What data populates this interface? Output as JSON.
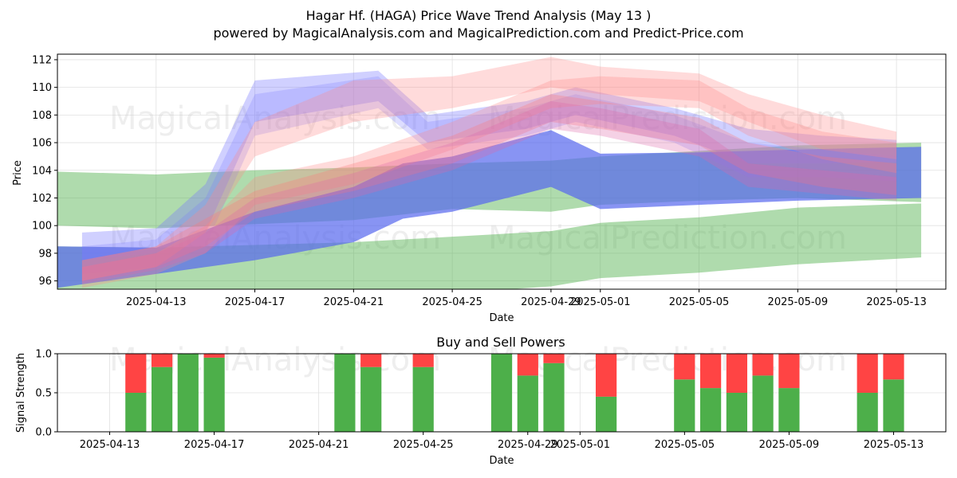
{
  "title_line1": "Hagar Hf. (HAGA) Price Wave Trend Analysis (May 13 )",
  "title_line2": "powered by MagicalAnalysis.com and MagicalPrediction.com and Predict-Price.com",
  "watermarks": [
    "MagicalAnalysis.com",
    "MagicalPrediction.com"
  ],
  "colors": {
    "green": "#4daf4a",
    "red": "#ff4444",
    "blue": "#5555ff",
    "pink": "#ff9999",
    "grid": "#e0e0e0"
  },
  "chart_data": [
    {
      "type": "area",
      "title": "",
      "xlabel": "Date",
      "ylabel": "Price",
      "ylim": [
        95.4,
        112.4
      ],
      "yticks": [
        96,
        98,
        100,
        102,
        104,
        106,
        108,
        110,
        112
      ],
      "xlim": [
        "2025-04-09",
        "2025-05-15"
      ],
      "xticks": [
        "2025-04-13",
        "2025-04-17",
        "2025-04-21",
        "2025-04-25",
        "2025-04-29",
        "2025-05-01",
        "2025-05-05",
        "2025-05-09",
        "2025-05-13"
      ],
      "grid": true,
      "bands": [
        {
          "name": "green-upper",
          "color": "#4daf4a",
          "opacity": 0.45,
          "x": [
            "2025-04-09",
            "2025-04-13",
            "2025-04-17",
            "2025-04-21",
            "2025-04-25",
            "2025-04-29",
            "2025-05-01",
            "2025-05-05",
            "2025-05-09",
            "2025-05-14"
          ],
          "upper": [
            103.9,
            103.7,
            104.0,
            104.2,
            104.5,
            104.7,
            105.0,
            105.4,
            105.8,
            106.0
          ],
          "lower": [
            100.0,
            99.8,
            100.1,
            100.4,
            101.2,
            101.0,
            101.5,
            101.8,
            102.0,
            101.7
          ]
        },
        {
          "name": "green-lower",
          "color": "#4daf4a",
          "opacity": 0.45,
          "x": [
            "2025-04-09",
            "2025-04-13",
            "2025-04-17",
            "2025-04-21",
            "2025-04-25",
            "2025-04-29",
            "2025-05-01",
            "2025-05-05",
            "2025-05-09",
            "2025-05-14"
          ],
          "upper": [
            98.5,
            98.4,
            98.6,
            98.8,
            99.2,
            99.6,
            100.2,
            100.6,
            101.3,
            101.6
          ],
          "lower": [
            95.0,
            94.0,
            94.5,
            94.8,
            95.1,
            95.6,
            96.2,
            96.6,
            97.2,
            97.7
          ]
        },
        {
          "name": "blue-main",
          "color": "#5566ee",
          "opacity": 0.7,
          "x": [
            "2025-04-09",
            "2025-04-13",
            "2025-04-17",
            "2025-04-21",
            "2025-04-23",
            "2025-04-25",
            "2025-04-29",
            "2025-05-01",
            "2025-05-05",
            "2025-05-09",
            "2025-05-14"
          ],
          "upper": [
            98.5,
            98.4,
            101.0,
            102.8,
            104.5,
            105.0,
            106.9,
            105.2,
            105.3,
            105.5,
            105.7
          ],
          "lower": [
            95.5,
            96.5,
            97.5,
            98.8,
            100.5,
            101.0,
            102.8,
            101.2,
            101.5,
            101.8,
            102.0
          ]
        },
        {
          "name": "blue-wave-1",
          "color": "#7777ff",
          "opacity": 0.35,
          "x": [
            "2025-04-10",
            "2025-04-13",
            "2025-04-15",
            "2025-04-17",
            "2025-04-22",
            "2025-04-24",
            "2025-04-28",
            "2025-04-30",
            "2025-05-04",
            "2025-05-07",
            "2025-05-10",
            "2025-05-13"
          ],
          "upper": [
            99.5,
            99.8,
            103.0,
            110.5,
            111.2,
            108.0,
            109.0,
            110.0,
            108.5,
            107.0,
            106.5,
            106.2
          ],
          "lower": [
            97.5,
            98.0,
            99.5,
            107.5,
            109.0,
            106.0,
            107.0,
            108.0,
            106.5,
            104.5,
            104.5,
            104.6
          ]
        },
        {
          "name": "blue-wave-2",
          "color": "#7777ff",
          "opacity": 0.25,
          "x": [
            "2025-04-10",
            "2025-04-13",
            "2025-04-15",
            "2025-04-17",
            "2025-04-22",
            "2025-04-24",
            "2025-04-28",
            "2025-04-30",
            "2025-05-04",
            "2025-05-07",
            "2025-05-10",
            "2025-05-13"
          ],
          "upper": [
            98.5,
            99.0,
            102.0,
            109.5,
            110.8,
            107.5,
            108.5,
            109.5,
            108.0,
            106.0,
            105.5,
            105.0
          ],
          "lower": [
            96.5,
            97.0,
            98.5,
            106.5,
            108.5,
            105.5,
            106.5,
            107.5,
            106.0,
            103.5,
            103.5,
            103.2
          ]
        },
        {
          "name": "pink-wave-1",
          "color": "#ff8888",
          "opacity": 0.3,
          "x": [
            "2025-04-10",
            "2025-04-13",
            "2025-04-15",
            "2025-04-17",
            "2025-04-21",
            "2025-04-25",
            "2025-04-29",
            "2025-05-01",
            "2025-05-05",
            "2025-05-07",
            "2025-05-10",
            "2025-05-13"
          ],
          "upper": [
            97.5,
            98.5,
            101.5,
            107.5,
            110.5,
            110.8,
            112.2,
            111.5,
            111.0,
            109.5,
            108.0,
            106.8
          ],
          "lower": [
            96.0,
            97.0,
            99.5,
            105.0,
            107.5,
            108.5,
            110.0,
            109.5,
            109.0,
            107.5,
            105.5,
            104.8
          ]
        },
        {
          "name": "pink-wave-2",
          "color": "#ff8888",
          "opacity": 0.3,
          "x": [
            "2025-04-10",
            "2025-04-13",
            "2025-04-15",
            "2025-04-17",
            "2025-04-21",
            "2025-04-25",
            "2025-04-29",
            "2025-05-01",
            "2025-05-05",
            "2025-05-07",
            "2025-05-10",
            "2025-05-13"
          ],
          "upper": [
            97.0,
            98.0,
            100.0,
            103.5,
            105.0,
            107.5,
            110.5,
            110.8,
            110.5,
            108.5,
            106.8,
            106.0
          ],
          "lower": [
            95.5,
            96.5,
            98.0,
            101.5,
            103.0,
            105.5,
            108.5,
            108.8,
            108.5,
            106.5,
            104.8,
            103.8
          ]
        },
        {
          "name": "pink-wave-3",
          "color": "#ff7777",
          "opacity": 0.3,
          "x": [
            "2025-04-10",
            "2025-04-13",
            "2025-04-15",
            "2025-04-17",
            "2025-04-21",
            "2025-04-25",
            "2025-04-29",
            "2025-05-01",
            "2025-05-05",
            "2025-05-07",
            "2025-05-10",
            "2025-05-13"
          ],
          "upper": [
            97.5,
            98.5,
            100.5,
            102.5,
            104.5,
            106.5,
            109.5,
            109.0,
            107.8,
            106.0,
            105.0,
            104.5
          ],
          "lower": [
            96.0,
            97.0,
            98.5,
            101.0,
            102.5,
            104.5,
            107.5,
            107.0,
            105.8,
            103.8,
            102.8,
            102.2
          ]
        },
        {
          "name": "pink-wave-4",
          "color": "#dd66aa",
          "opacity": 0.3,
          "x": [
            "2025-04-10",
            "2025-04-13",
            "2025-04-15",
            "2025-04-17",
            "2025-04-21",
            "2025-04-25",
            "2025-04-29",
            "2025-05-01",
            "2025-05-05",
            "2025-05-07",
            "2025-05-10",
            "2025-05-13"
          ],
          "upper": [
            97.0,
            98.0,
            99.5,
            102.0,
            103.8,
            106.0,
            109.0,
            108.5,
            107.0,
            104.5,
            104.0,
            103.5
          ],
          "lower": [
            95.8,
            96.8,
            98.0,
            100.5,
            102.0,
            104.0,
            107.0,
            106.5,
            105.0,
            102.8,
            102.3,
            101.8
          ]
        }
      ]
    },
    {
      "type": "bar",
      "title": "Buy and Sell Powers",
      "xlabel": "Date",
      "ylabel": "Signal Strength",
      "ylim": [
        0.0,
        1.0
      ],
      "yticks": [
        "0.0",
        "0.5",
        "1.0"
      ],
      "xlim": [
        "2025-04-11",
        "2025-05-15"
      ],
      "xticks": [
        "2025-04-13",
        "2025-04-17",
        "2025-04-21",
        "2025-04-25",
        "2025-04-29",
        "2025-05-01",
        "2025-05-05",
        "2025-05-09",
        "2025-05-13"
      ],
      "grid": true,
      "dates": [
        "2025-04-14",
        "2025-04-15",
        "2025-04-16",
        "2025-04-17",
        "2025-04-22",
        "2025-04-23",
        "2025-04-25",
        "2025-04-28",
        "2025-04-29",
        "2025-04-30",
        "2025-05-02",
        "2025-05-05",
        "2025-05-06",
        "2025-05-07",
        "2025-05-08",
        "2025-05-09",
        "2025-05-12",
        "2025-05-13"
      ],
      "series": [
        {
          "name": "Buy",
          "color": "#4daf4a",
          "values": [
            0.5,
            0.83,
            1.0,
            0.95,
            1.0,
            0.83,
            0.83,
            1.0,
            0.72,
            0.88,
            0.45,
            0.67,
            0.56,
            0.5,
            0.72,
            0.56,
            0.5,
            0.67
          ]
        },
        {
          "name": "Sell",
          "color": "#ff4444",
          "values": [
            0.5,
            0.17,
            0.0,
            0.05,
            0.0,
            0.17,
            0.17,
            0.0,
            0.28,
            0.12,
            0.55,
            0.33,
            0.44,
            0.5,
            0.28,
            0.44,
            0.5,
            0.33
          ]
        }
      ]
    }
  ]
}
